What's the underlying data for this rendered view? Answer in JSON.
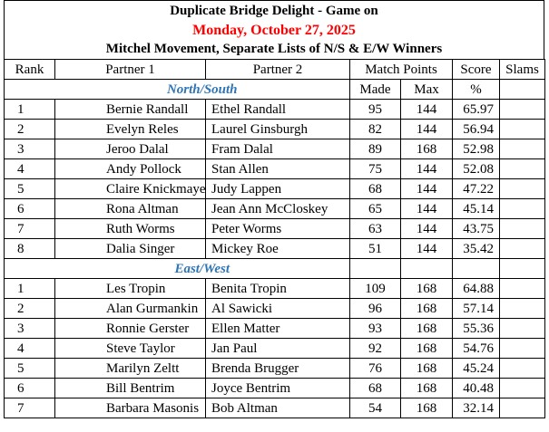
{
  "header": {
    "line1": "Duplicate Bridge Delight - Game on",
    "line2": "Monday, October 27, 2025",
    "line3": "Mitchel Movement, Separate Lists of N/S & E/W Winners"
  },
  "columns": {
    "rank": "Rank",
    "partner1": "Partner 1",
    "partner2": "Partner 2",
    "match_points": "Match Points",
    "score": "Score",
    "slams": "Slams",
    "made": "Made",
    "max": "Max",
    "percent": "%"
  },
  "sections": [
    {
      "title": "North/South",
      "rows": [
        {
          "rank": "1",
          "p1": "Bernie Randall",
          "p2": "Ethel Randall",
          "made": "95",
          "max": "144",
          "score": "65.97"
        },
        {
          "rank": "2",
          "p1": "Evelyn Reles",
          "p2": "Laurel Ginsburgh",
          "made": "82",
          "max": "144",
          "score": "56.94"
        },
        {
          "rank": "3",
          "p1": "Jeroo Dalal",
          "p2": "Fram Dalal",
          "made": "89",
          "max": "168",
          "score": "52.98"
        },
        {
          "rank": "4",
          "p1": "Andy Pollock",
          "p2": "Stan Allen",
          "made": "75",
          "max": "144",
          "score": "52.08"
        },
        {
          "rank": "5",
          "p1": "Claire Knickmayer",
          "p2": "Judy Lappen",
          "made": "68",
          "max": "144",
          "score": "47.22"
        },
        {
          "rank": "6",
          "p1": "Rona Altman",
          "p2": "Jean Ann McCloskey",
          "made": "65",
          "max": "144",
          "score": "45.14"
        },
        {
          "rank": "7",
          "p1": "Ruth Worms",
          "p2": "Peter Worms",
          "made": "63",
          "max": "144",
          "score": "43.75"
        },
        {
          "rank": "8",
          "p1": "Dalia Singer",
          "p2": "Mickey Roe",
          "made": "51",
          "max": "144",
          "score": "35.42"
        }
      ]
    },
    {
      "title": "East/West",
      "rows": [
        {
          "rank": "1",
          "p1": "Les Tropin",
          "p2": "Benita Tropin",
          "made": "109",
          "max": "168",
          "score": "64.88"
        },
        {
          "rank": "2",
          "p1": "Alan Gurmankin",
          "p2": "Al Sawicki",
          "made": "96",
          "max": "168",
          "score": "57.14"
        },
        {
          "rank": "3",
          "p1": "Ronnie Gerster",
          "p2": "Ellen Matter",
          "made": "93",
          "max": "168",
          "score": "55.36"
        },
        {
          "rank": "4",
          "p1": "Steve Taylor",
          "p2": "Jan Paul",
          "made": "92",
          "max": "168",
          "score": "54.76"
        },
        {
          "rank": "5",
          "p1": "Marilyn Zeltt",
          "p2": "Brenda Brugger",
          "made": "76",
          "max": "168",
          "score": "45.24"
        },
        {
          "rank": "6",
          "p1": "Bill Bentrim",
          "p2": "Joyce Bentrim",
          "made": "68",
          "max": "168",
          "score": "40.48"
        },
        {
          "rank": "7",
          "p1": "Barbara Masonis",
          "p2": "Bob Altman",
          "made": "54",
          "max": "168",
          "score": "32.14"
        }
      ]
    }
  ],
  "colors": {
    "title_red": "#ff0000",
    "section_blue": "#2e75b6"
  }
}
